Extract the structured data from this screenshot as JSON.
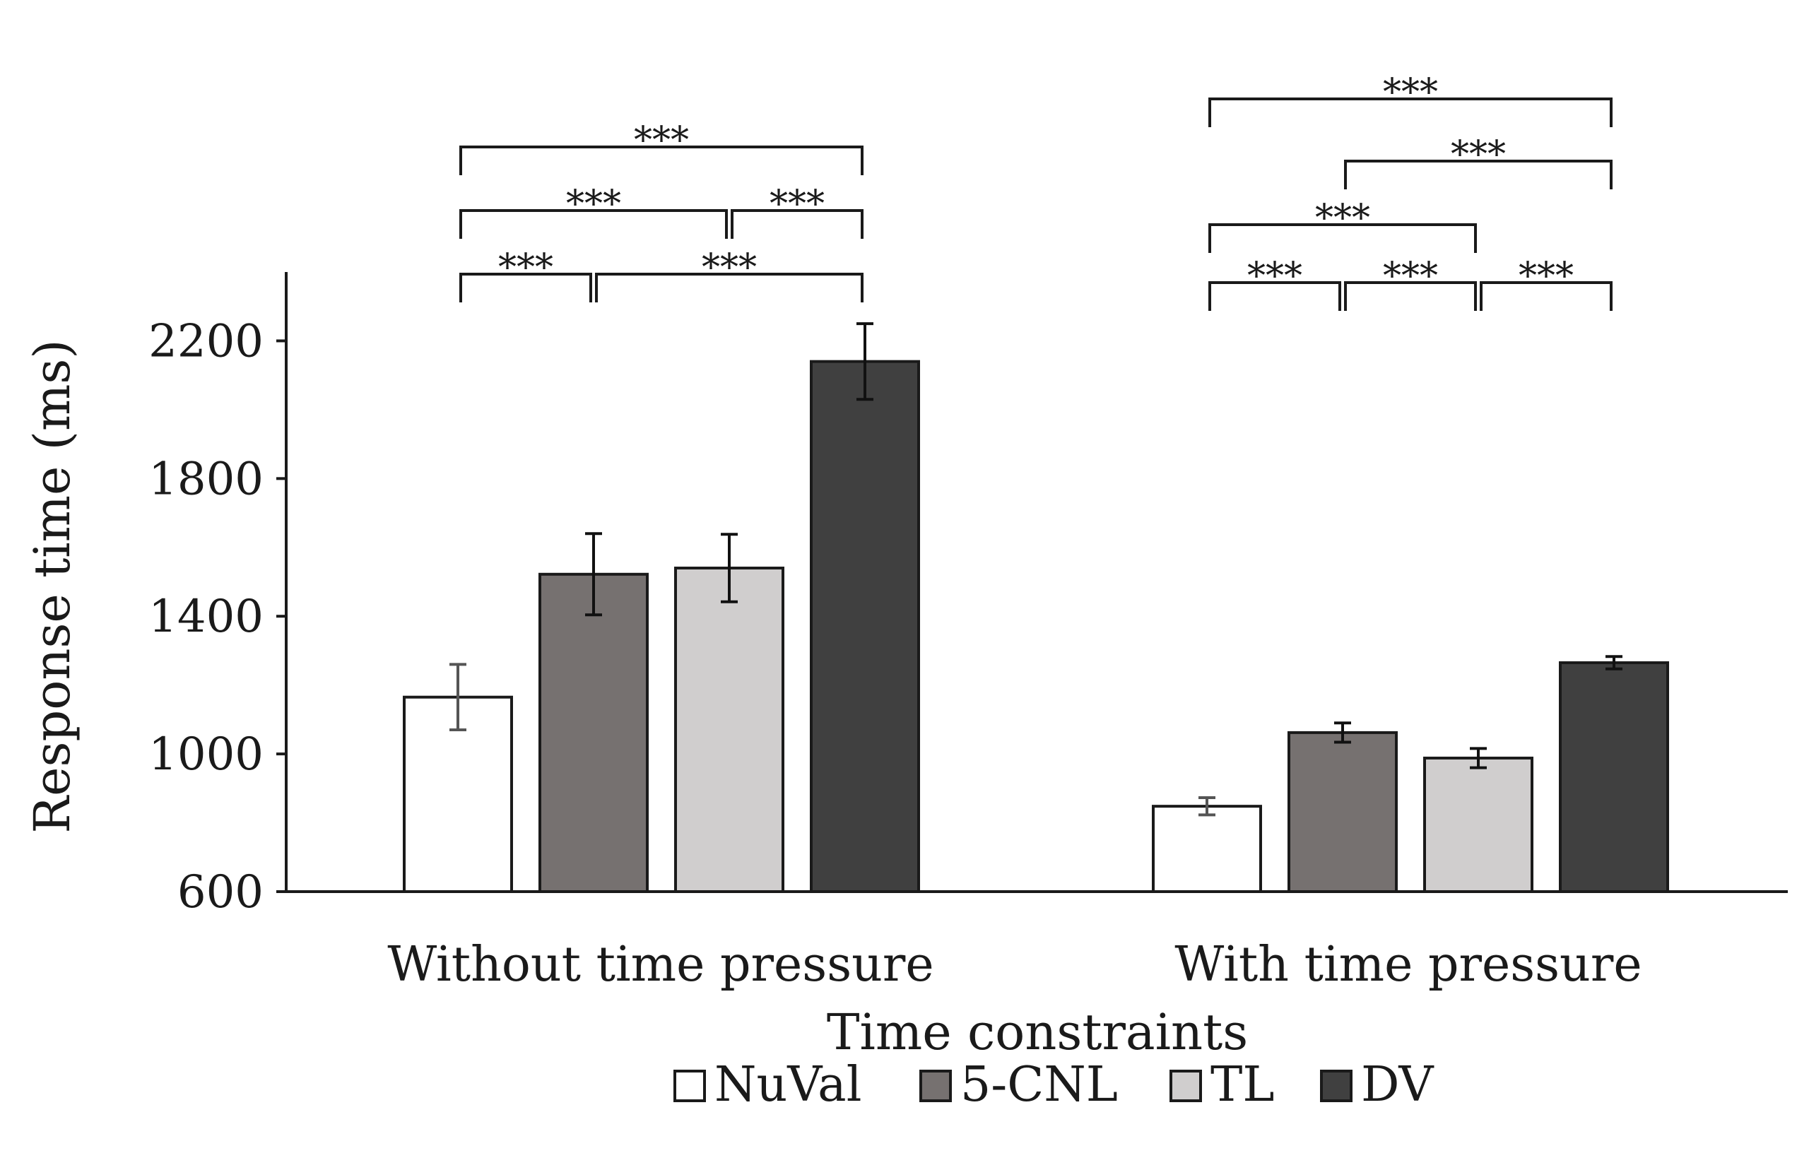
{
  "chart_data": {
    "type": "bar",
    "title": "",
    "xlabel": "Time constraints",
    "ylabel": "Response time (ms)",
    "ylim": [
      600,
      2400
    ],
    "yticks": [
      600,
      1000,
      1400,
      1800,
      2200
    ],
    "grid": false,
    "legend_position": "bottom",
    "categories": [
      "Without time pressure",
      "With time pressure"
    ],
    "series": [
      {
        "name": "NuVal",
        "color": "#ffffff",
        "values": [
          1165,
          848
        ],
        "errors": [
          95,
          25
        ]
      },
      {
        "name": "5-CNL",
        "color": "#767170",
        "values": [
          1522,
          1062
        ],
        "errors": [
          118,
          28
        ]
      },
      {
        "name": "TL",
        "color": "#d0cece",
        "values": [
          1540,
          988
        ],
        "errors": [
          98,
          28
        ]
      },
      {
        "name": "DV",
        "color": "#404040",
        "values": [
          2140,
          1265
        ],
        "errors": [
          110,
          18
        ]
      }
    ],
    "significance": [
      {
        "group": 0,
        "from": "NuVal",
        "to": "5-CNL",
        "label": "***",
        "level": 0
      },
      {
        "group": 0,
        "from": "5-CNL",
        "to": "DV",
        "label": "***",
        "level": 0
      },
      {
        "group": 0,
        "from": "NuVal",
        "to": "TL",
        "label": "***",
        "level": 1
      },
      {
        "group": 0,
        "from": "TL",
        "to": "DV",
        "label": "***",
        "level": 1
      },
      {
        "group": 0,
        "from": "NuVal",
        "to": "DV",
        "label": "***",
        "level": 2
      },
      {
        "group": 1,
        "from": "NuVal",
        "to": "5-CNL",
        "label": "***",
        "level": 0
      },
      {
        "group": 1,
        "from": "5-CNL",
        "to": "TL",
        "label": "***",
        "level": 0
      },
      {
        "group": 1,
        "from": "TL",
        "to": "DV",
        "label": "***",
        "level": 0
      },
      {
        "group": 1,
        "from": "NuVal",
        "to": "TL",
        "label": "***",
        "level": 1
      },
      {
        "group": 1,
        "from": "5-CNL",
        "to": "DV",
        "label": "***",
        "level": 2
      },
      {
        "group": 1,
        "from": "NuVal",
        "to": "DV",
        "label": "***",
        "level": 3
      }
    ]
  }
}
